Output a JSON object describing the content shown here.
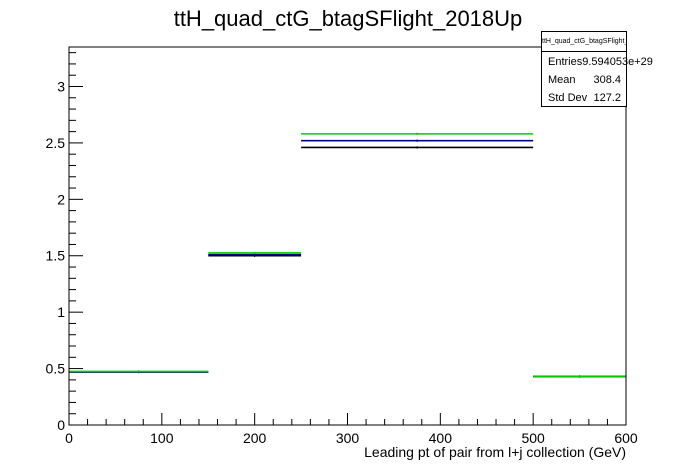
{
  "chart_data": {
    "type": "histogram",
    "title": "ttH_quad_ctG_btagSFlight_2018Up",
    "xlabel": "Leading pt of pair from l+j collection (GeV)",
    "ylabel": "",
    "xlim": [
      0,
      600
    ],
    "ylim": [
      0,
      3.35
    ],
    "x_ticks": [
      "0",
      "100",
      "200",
      "300",
      "400",
      "500",
      "600"
    ],
    "y_ticks": [
      "0",
      "0.5",
      "1",
      "1.5",
      "2",
      "2.5",
      "3"
    ],
    "bins": [
      [
        0,
        150
      ],
      [
        150,
        250
      ],
      [
        250,
        500
      ],
      [
        500,
        600
      ]
    ],
    "series": [
      {
        "color": "#000000",
        "values": [
          0.47,
          1.5,
          2.46,
          0.43
        ]
      },
      {
        "color": "#00008b",
        "values": [
          0.47,
          1.51,
          2.52,
          0.43
        ]
      },
      {
        "color": "#00cc00",
        "values": [
          0.475,
          1.525,
          2.58,
          0.43
        ]
      }
    ],
    "grid": false,
    "legend": "none"
  },
  "stats": {
    "title": "ttH_quad_ctG_btagSFlight_2018Up",
    "rows": [
      {
        "label": "Entries",
        "value": "9.594053e+29"
      },
      {
        "label": "Mean",
        "value": "308.4"
      },
      {
        "label": "Std Dev",
        "value": "127.2"
      }
    ]
  }
}
